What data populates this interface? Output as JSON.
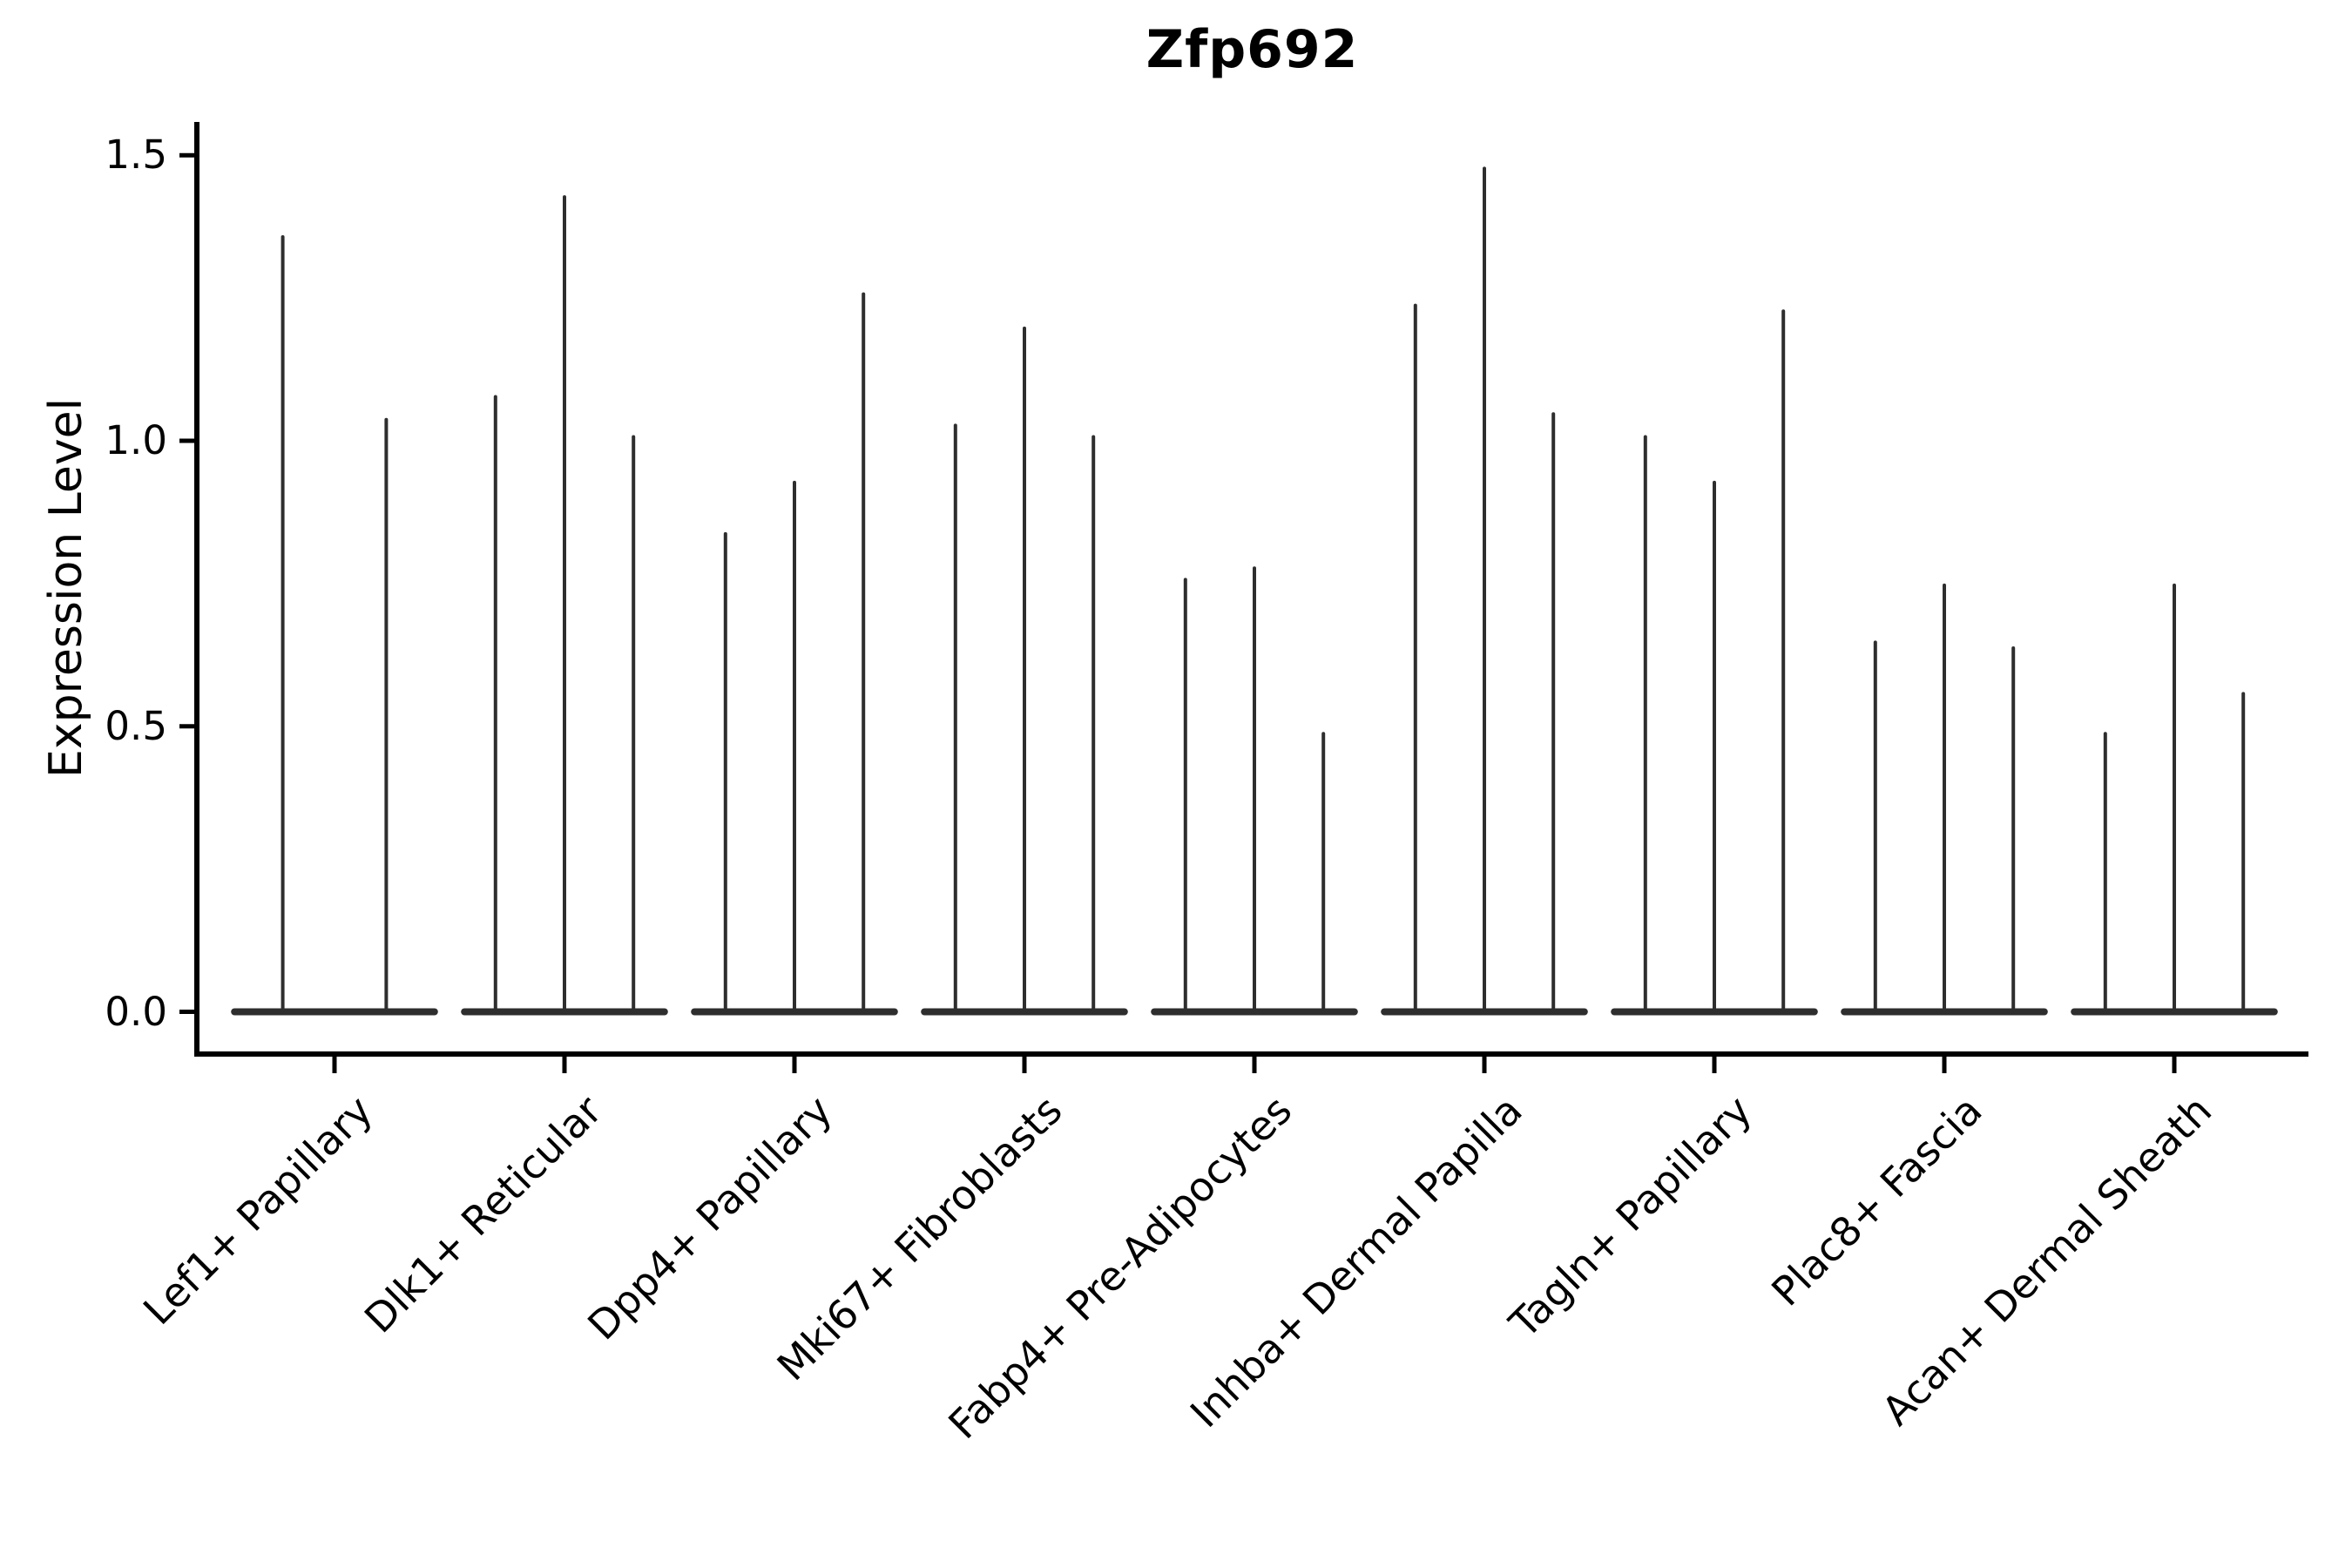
{
  "chart_data": {
    "type": "violin",
    "title": "Zfp692",
    "ylabel": "Expression Level",
    "xlabel": "",
    "yticks": [
      0.0,
      0.5,
      1.0,
      1.5
    ],
    "ytick_labels": [
      "0.0",
      "0.5",
      "1.0",
      "1.5"
    ],
    "ylim": [
      -0.07,
      1.56
    ],
    "grid": false,
    "legend_position": "none",
    "description": "Needle-like violins: bulk of expression density is a flat bar at 0, thin spikes rise to each violin's maximum expression value. Each cell-type category contains 2-3 violins.",
    "categories": [
      "Lef1+ Papillary",
      "Dlk1+ Reticular",
      "Dpp4+ Papillary",
      "Mki67+ Fibroblasts",
      "Fabp4+ Pre-Adipocytes",
      "Inhba+ Dermal Papilla",
      "Tagln+ Papillary",
      "Plac8+ Fascia",
      "Acan+ Dermal Sheath"
    ],
    "groups": [
      {
        "label": "Lef1+ Papillary",
        "violin_max_values": [
          1.36,
          1.04
        ]
      },
      {
        "label": "Dlk1+ Reticular",
        "violin_max_values": [
          1.08,
          1.43,
          1.01
        ]
      },
      {
        "label": "Dpp4+ Papillary",
        "violin_max_values": [
          0.84,
          0.93,
          1.26
        ]
      },
      {
        "label": "Mki67+ Fibroblasts",
        "violin_max_values": [
          1.03,
          1.2,
          1.01
        ]
      },
      {
        "label": "Fabp4+ Pre-Adipocytes",
        "violin_max_values": [
          0.76,
          0.78,
          0.49
        ]
      },
      {
        "label": "Inhba+ Dermal Papilla",
        "violin_max_values": [
          1.24,
          1.48,
          1.05
        ]
      },
      {
        "label": "Tagln+ Papillary",
        "violin_max_values": [
          1.01,
          0.93,
          1.23
        ]
      },
      {
        "label": "Plac8+ Fascia",
        "violin_max_values": [
          0.65,
          0.75,
          0.64
        ]
      },
      {
        "label": "Acan+ Dermal Sheath",
        "violin_max_values": [
          0.49,
          0.75,
          0.56
        ]
      }
    ],
    "colors": {
      "violin_fill": "#2e2e2e",
      "axis": "#000000",
      "text": "#000000",
      "background": "#ffffff"
    }
  }
}
